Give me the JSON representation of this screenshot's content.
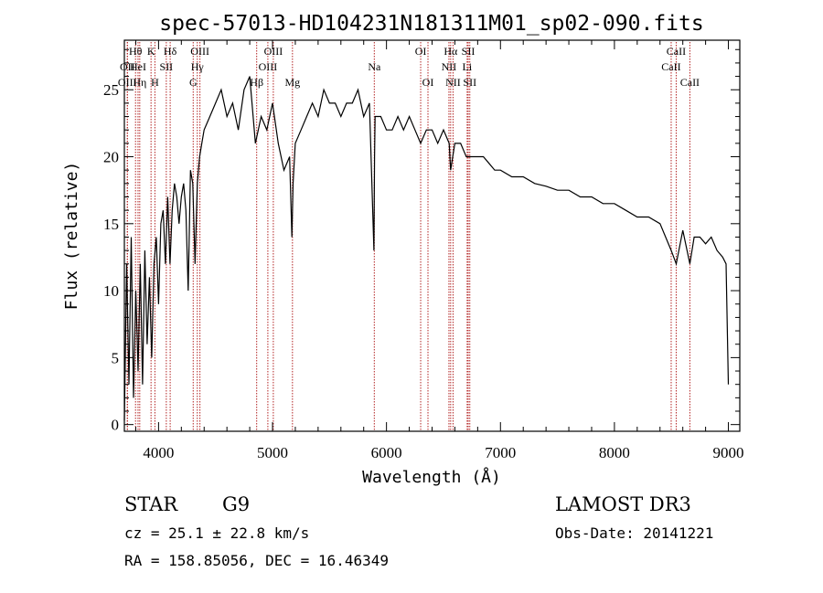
{
  "chart_data": {
    "type": "line",
    "title": "spec-57013-HD104231N181311M01_sp02-090.fits",
    "xlabel": "Wavelength (Å)",
    "ylabel": "Flux (relative)",
    "xlim": [
      3700,
      9100
    ],
    "ylim": [
      -0.5,
      28.7
    ],
    "x_ticks": [
      4000,
      5000,
      6000,
      7000,
      8000,
      9000
    ],
    "y_ticks": [
      0,
      5,
      10,
      15,
      20,
      25
    ],
    "grid": false,
    "series": [
      {
        "x": [
          3700,
          3720,
          3740,
          3760,
          3780,
          3800,
          3820,
          3840,
          3860,
          3880,
          3900,
          3920,
          3940,
          3960,
          3980,
          4000,
          4020,
          4040,
          4060,
          4080,
          4100,
          4120,
          4140,
          4160,
          4180,
          4200,
          4220,
          4240,
          4260,
          4280,
          4300,
          4320,
          4340,
          4360,
          4380,
          4400,
          4450,
          4500,
          4550,
          4600,
          4650,
          4700,
          4750,
          4800,
          4850,
          4900,
          4950,
          5000,
          5050,
          5100,
          5150,
          5170,
          5180,
          5200,
          5250,
          5300,
          5350,
          5400,
          5450,
          5500,
          5550,
          5600,
          5650,
          5700,
          5750,
          5800,
          5850,
          5890,
          5895,
          5900,
          5950,
          6000,
          6050,
          6100,
          6150,
          6200,
          6250,
          6300,
          6350,
          6400,
          6450,
          6500,
          6550,
          6563,
          6600,
          6650,
          6700,
          6750,
          6800,
          6850,
          6900,
          6950,
          7000,
          7100,
          7200,
          7300,
          7400,
          7500,
          7600,
          7700,
          7800,
          7900,
          8000,
          8100,
          8200,
          8300,
          8400,
          8498,
          8542,
          8600,
          8662,
          8700,
          8750,
          8800,
          8850,
          8900,
          8950,
          8980,
          9000
        ],
        "y": [
          0.3,
          12,
          3,
          14,
          2,
          10,
          4,
          12,
          3,
          13,
          6,
          11,
          5,
          12,
          14,
          9,
          15,
          16,
          12,
          17,
          12,
          16,
          18,
          17,
          15,
          17,
          18,
          16,
          10,
          19,
          18,
          12,
          18,
          20,
          21,
          22,
          23,
          24,
          25,
          23,
          24,
          22,
          25,
          26,
          21,
          23,
          22,
          24,
          21,
          19,
          20,
          14,
          18,
          21,
          22,
          23,
          24,
          23,
          25,
          24,
          24,
          23,
          24,
          24,
          25,
          23,
          24,
          13,
          20,
          23,
          23,
          22,
          22,
          23,
          22,
          23,
          22,
          21,
          22,
          22,
          21,
          22,
          21,
          19,
          21,
          21,
          20,
          20,
          20,
          20,
          19.5,
          19,
          19,
          18.5,
          18.5,
          18,
          17.8,
          17.5,
          17.5,
          17,
          17,
          16.5,
          16.5,
          16,
          15.5,
          15.5,
          15,
          13,
          12,
          14.5,
          12,
          14,
          14,
          13.5,
          14,
          13,
          12.5,
          12,
          3
        ]
      }
    ],
    "lines": [
      {
        "label": "Hθ",
        "wave": 3798,
        "row": 1
      },
      {
        "label": "OII",
        "wave": 3727,
        "row": 2
      },
      {
        "label": "OIII",
        "wave": 3726,
        "row": 3
      },
      {
        "label": "HeI",
        "wave": 3820,
        "row": 2
      },
      {
        "label": "Hη",
        "wave": 3835,
        "row": 3
      },
      {
        "label": "K",
        "wave": 3934,
        "row": 1
      },
      {
        "label": "H",
        "wave": 3968,
        "row": 3
      },
      {
        "label": "SII",
        "wave": 4068,
        "row": 2
      },
      {
        "label": "Hδ",
        "wave": 4102,
        "row": 1
      },
      {
        "label": "OIII",
        "wave": 4363,
        "row": 1
      },
      {
        "label": "Hγ",
        "wave": 4340,
        "row": 2
      },
      {
        "label": "G",
        "wave": 4304,
        "row": 3
      },
      {
        "label": "OIII",
        "wave": 5007,
        "row": 1
      },
      {
        "label": "OIII",
        "wave": 4959,
        "row": 2
      },
      {
        "label": "Hβ",
        "wave": 4861,
        "row": 3
      },
      {
        "label": "Mg",
        "wave": 5175,
        "row": 3
      },
      {
        "label": "Na",
        "wave": 5893,
        "row": 2
      },
      {
        "label": "OI",
        "wave": 6300,
        "row": 1
      },
      {
        "label": "OI",
        "wave": 6364,
        "row": 3
      },
      {
        "label": "Hα",
        "wave": 6563,
        "row": 1
      },
      {
        "label": "NII",
        "wave": 6548,
        "row": 2
      },
      {
        "label": "NII",
        "wave": 6584,
        "row": 3
      },
      {
        "label": "SII",
        "wave": 6717,
        "row": 1
      },
      {
        "label": "Li",
        "wave": 6708,
        "row": 2
      },
      {
        "label": "SII",
        "wave": 6731,
        "row": 3
      },
      {
        "label": "CaII",
        "wave": 8542,
        "row": 1
      },
      {
        "label": "CaII",
        "wave": 8498,
        "row": 2
      },
      {
        "label": "CaII",
        "wave": 8662,
        "row": 3
      }
    ]
  },
  "info": {
    "class": "STAR",
    "subclass": "G9",
    "survey": "LAMOST DR3",
    "cz": "cz = 25.1 ± 22.8 km/s",
    "coords": "RA = 158.85056, DEC =  16.46349",
    "obs_date": "Obs-Date: 20141221"
  },
  "colors": {
    "spectrum": "#000000",
    "line_markers": "#b22222"
  }
}
